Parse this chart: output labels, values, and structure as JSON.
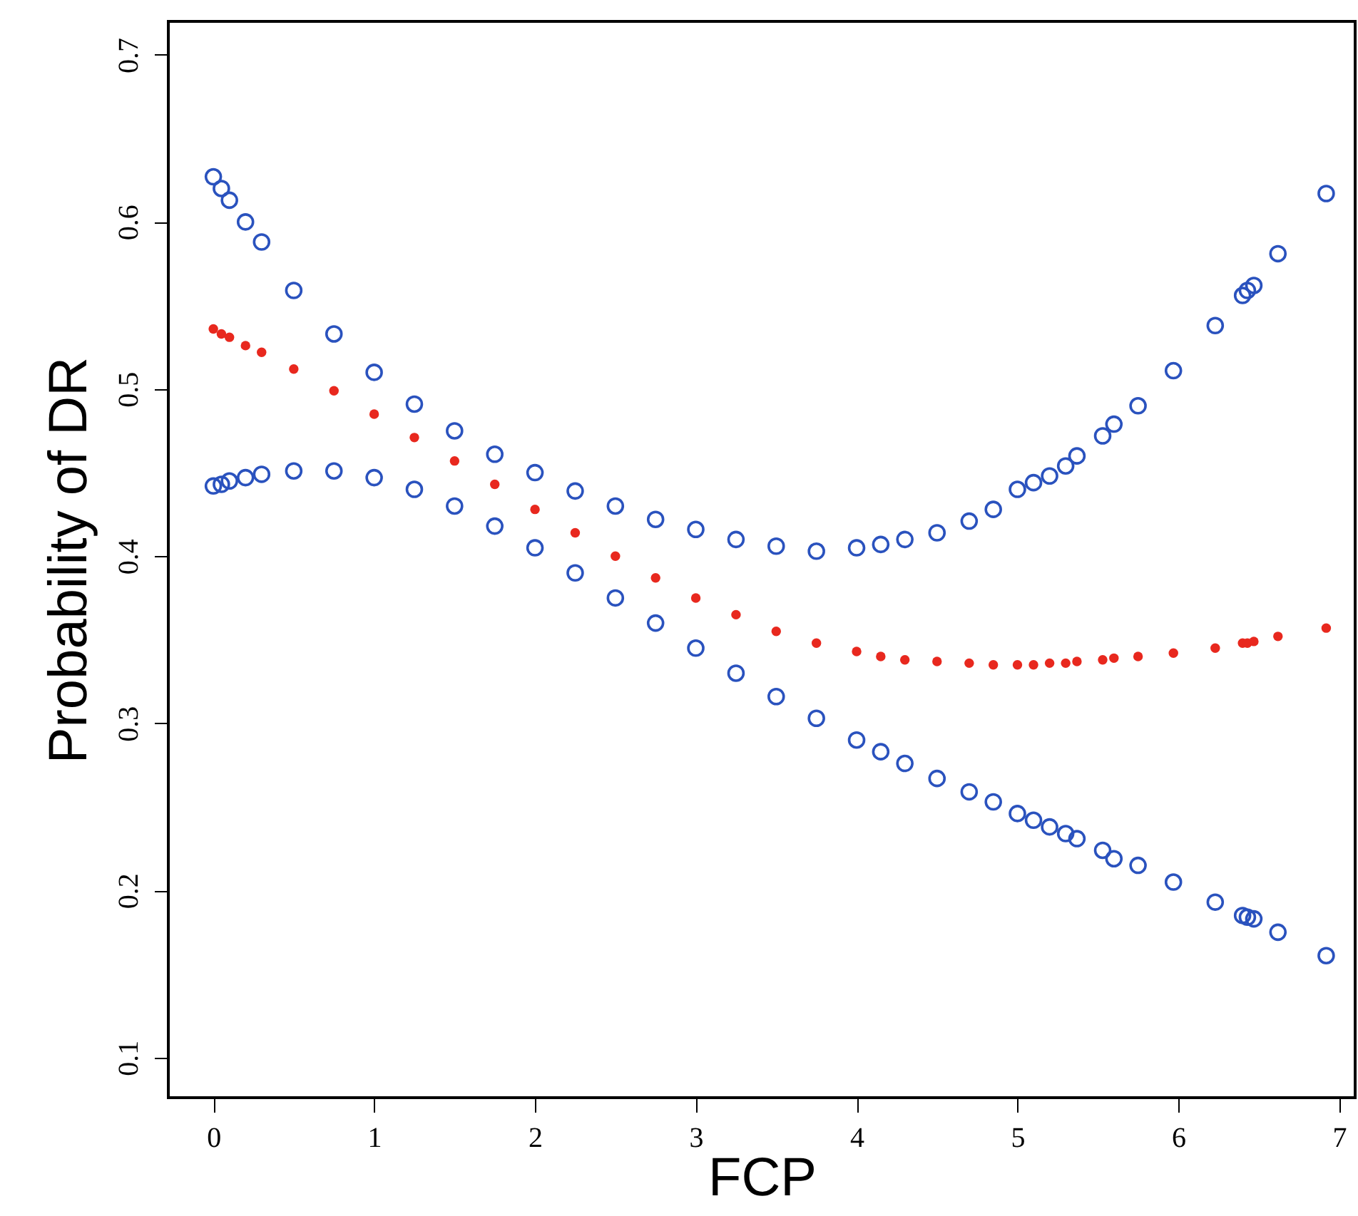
{
  "chart_data": {
    "type": "scatter",
    "xlabel": "FCP",
    "ylabel": "Probability of  DR",
    "xlim": [
      -0.28,
      7.1
    ],
    "ylim": [
      0.076,
      0.72
    ],
    "xticks": [
      0,
      1,
      2,
      3,
      4,
      5,
      6,
      7
    ],
    "yticks": [
      0.1,
      0.2,
      0.3,
      0.4,
      0.5,
      0.6,
      0.7
    ],
    "grid": false,
    "marker": "circle",
    "series": [
      {
        "color": "#2a52be",
        "x": [
          0,
          0.05,
          0.1,
          0.2,
          0.3,
          0.5,
          0.75,
          1,
          1.25,
          1.5,
          1.75,
          2,
          2.25,
          2.5,
          2.75,
          3,
          3.25,
          3.5,
          3.75,
          4,
          4.15,
          4.3,
          4.5,
          4.7,
          4.85,
          5,
          5.1,
          5.2,
          5.3,
          5.37,
          5.53,
          5.6,
          5.75,
          5.97,
          6.23,
          6.4,
          6.43,
          6.47,
          6.62,
          6.92
        ],
        "values": [
          0.627,
          0.62,
          0.613,
          0.6,
          0.588,
          0.559,
          0.533,
          0.51,
          0.491,
          0.475,
          0.461,
          0.45,
          0.439,
          0.43,
          0.422,
          0.416,
          0.41,
          0.406,
          0.403,
          0.405,
          0.407,
          0.41,
          0.414,
          0.421,
          0.428,
          0.44,
          0.444,
          0.448,
          0.454,
          0.46,
          0.472,
          0.479,
          0.49,
          0.511,
          0.538,
          0.556,
          0.559,
          0.562,
          0.581,
          0.617
        ]
      },
      {
        "color": "#e8281e",
        "x": [
          0,
          0.05,
          0.1,
          0.2,
          0.3,
          0.5,
          0.75,
          1,
          1.25,
          1.5,
          1.75,
          2,
          2.25,
          2.5,
          2.75,
          3,
          3.25,
          3.5,
          3.75,
          4,
          4.15,
          4.3,
          4.5,
          4.7,
          4.85,
          5,
          5.1,
          5.2,
          5.3,
          5.37,
          5.53,
          5.6,
          5.75,
          5.97,
          6.23,
          6.4,
          6.43,
          6.47,
          6.62,
          6.92
        ],
        "values": [
          0.536,
          0.533,
          0.531,
          0.526,
          0.522,
          0.512,
          0.499,
          0.485,
          0.471,
          0.457,
          0.443,
          0.428,
          0.414,
          0.4,
          0.387,
          0.375,
          0.365,
          0.355,
          0.348,
          0.343,
          0.34,
          0.338,
          0.337,
          0.336,
          0.335,
          0.335,
          0.335,
          0.336,
          0.336,
          0.337,
          0.338,
          0.339,
          0.34,
          0.342,
          0.345,
          0.348,
          0.348,
          0.349,
          0.352,
          0.357
        ]
      },
      {
        "color": "#2a52be",
        "x": [
          0,
          0.05,
          0.1,
          0.2,
          0.3,
          0.5,
          0.75,
          1,
          1.25,
          1.5,
          1.75,
          2,
          2.25,
          2.5,
          2.75,
          3,
          3.25,
          3.5,
          3.75,
          4,
          4.15,
          4.3,
          4.5,
          4.7,
          4.85,
          5,
          5.1,
          5.2,
          5.3,
          5.37,
          5.53,
          5.6,
          5.75,
          5.97,
          6.23,
          6.4,
          6.43,
          6.47,
          6.62,
          6.92
        ],
        "values": [
          0.442,
          0.443,
          0.445,
          0.447,
          0.449,
          0.451,
          0.451,
          0.447,
          0.44,
          0.43,
          0.418,
          0.405,
          0.39,
          0.375,
          0.36,
          0.345,
          0.33,
          0.316,
          0.303,
          0.29,
          0.283,
          0.276,
          0.267,
          0.259,
          0.253,
          0.246,
          0.242,
          0.238,
          0.234,
          0.231,
          0.224,
          0.219,
          0.215,
          0.205,
          0.193,
          0.185,
          0.184,
          0.183,
          0.175,
          0.161
        ]
      }
    ]
  }
}
